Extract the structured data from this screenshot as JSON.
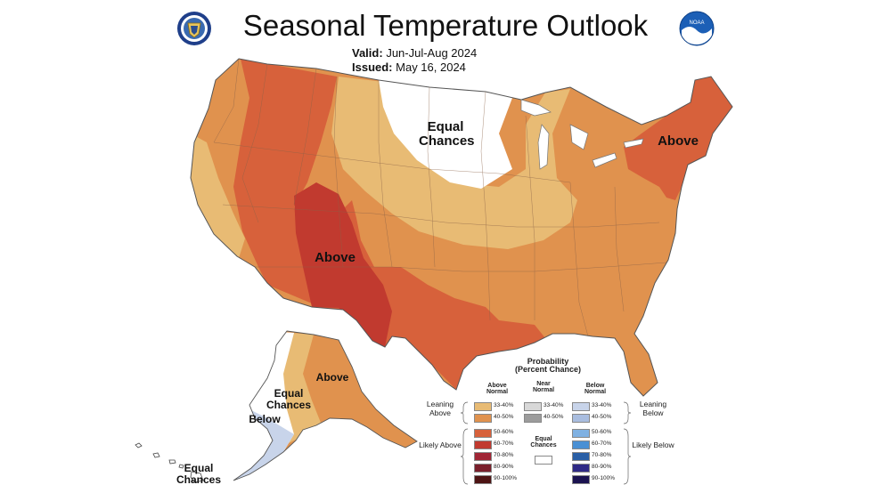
{
  "header": {
    "title": "Seasonal Temperature Outlook",
    "valid_label": "Valid:",
    "valid_value": "Jun-Jul-Aug 2024",
    "issued_label": "Issued:",
    "issued_value": "May 16, 2024"
  },
  "logos": {
    "left": "department-of-commerce-seal-icon",
    "right": "noaa-logo-icon",
    "right_text": "NOAA"
  },
  "map_labels": {
    "equal_chances_north": "Equal Chances",
    "above_southwest": "Above",
    "above_northeast": "Above",
    "alaska_above": "Above",
    "alaska_equal": "Equal Chances",
    "alaska_below": "Below",
    "hawaii_equal": "Equal Chances"
  },
  "colors": {
    "a33_40": "#e8bb74",
    "a40_50": "#e0924e",
    "a50_60": "#d7613b",
    "a60_70": "#c13a2f",
    "a70_80": "#a02535",
    "a80_90": "#7a1f2b",
    "a90_100": "#4d1414",
    "n33_40": "#d8d8d8",
    "n40_50": "#9c9c9c",
    "b33_40": "#c8d4ea",
    "b40_50": "#a9bddf",
    "b50_60": "#7fb1e2",
    "b60_70": "#4a90d4",
    "b70_80": "#2a5fa6",
    "b80_90": "#2f2a86",
    "b90_100": "#1b1350",
    "equal": "#ffffff"
  },
  "legend": {
    "title_line1": "Probability",
    "title_line2": "(Percent Chance)",
    "col_above": "Above Normal",
    "col_near": "Near Normal",
    "col_below": "Below Normal",
    "leaning_above": "Leaning Above",
    "leaning_below": "Leaning Below",
    "likely_above": "Likely Above",
    "likely_below": "Likely Below",
    "equal_chances": "Equal Chances",
    "ranges": [
      "33-40%",
      "40-50%",
      "50-60%",
      "60-70%",
      "70-80%",
      "80-90%",
      "90-100%"
    ],
    "near_ranges": [
      "33-40%",
      "40-50%"
    ]
  }
}
